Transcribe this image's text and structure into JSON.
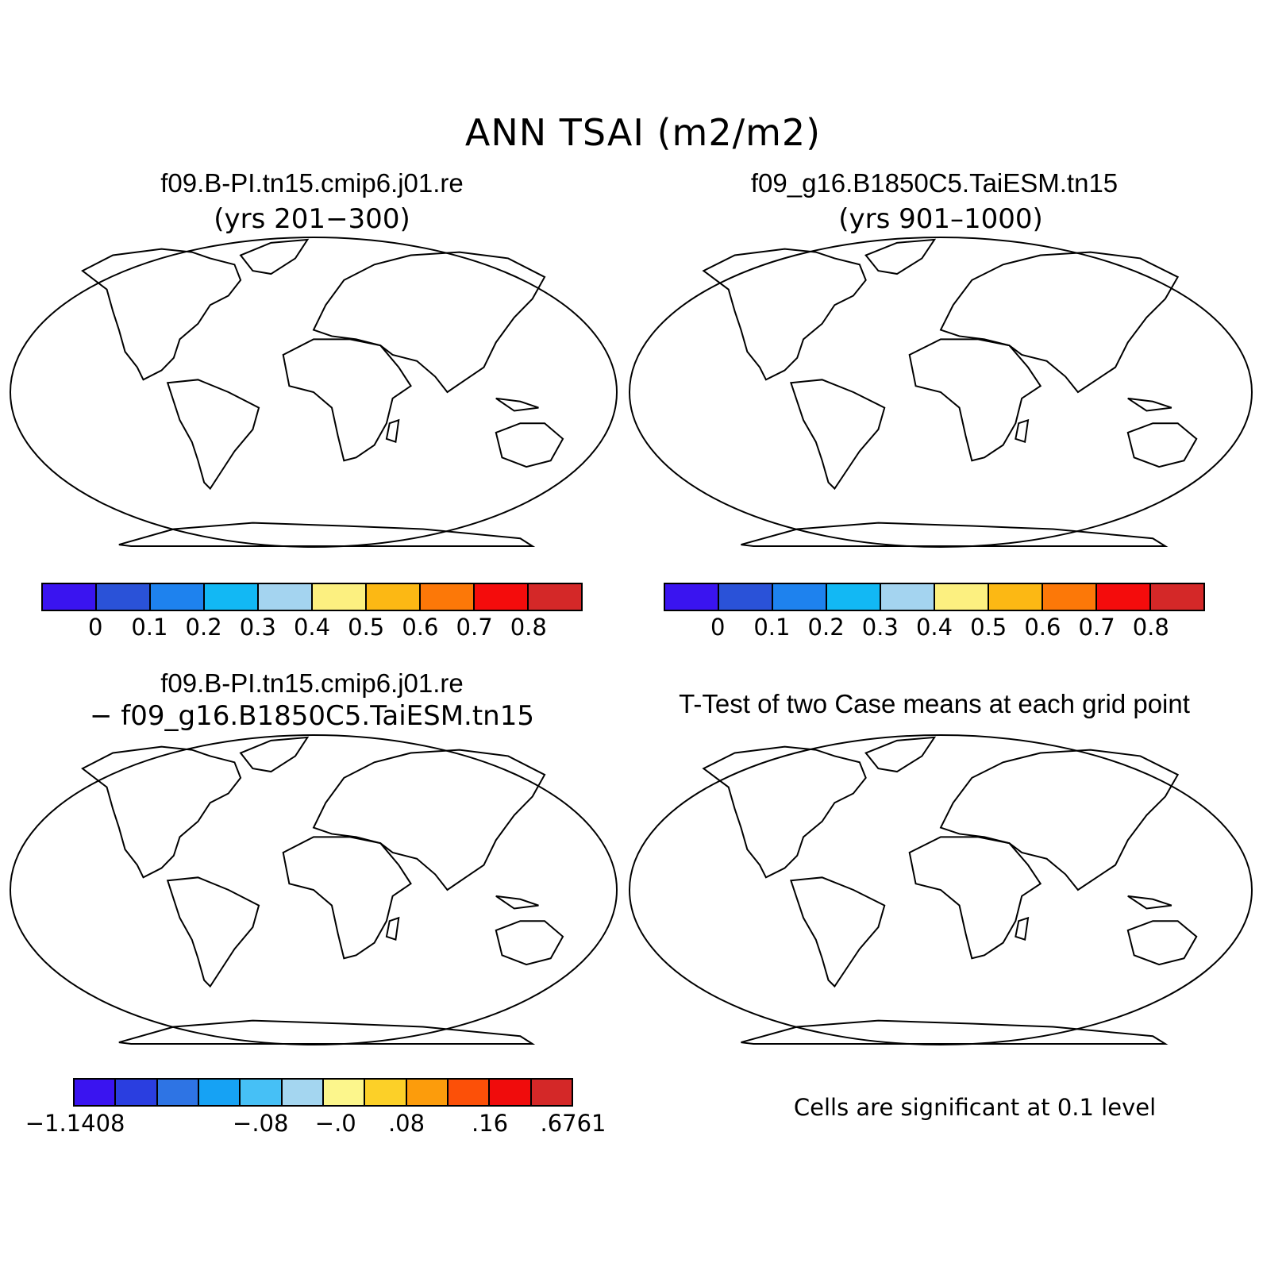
{
  "figure": {
    "title": "ANN TSAI (m2/m2)",
    "significance_note": "Cells are significant at 0.1 level"
  },
  "panels": {
    "case1": {
      "name": "f09.B-PI.tn15.cmip6.j01.re",
      "years": "(yrs 201−300)"
    },
    "case2": {
      "name": "f09_g16.B1850C5.TaiESM.tn15",
      "years": "(yrs 901–1000)"
    },
    "diff": {
      "line1": "f09.B-PI.tn15.cmip6.j01.re",
      "line2": "− f09_g16.B1850C5.TaiESM.tn15"
    },
    "ttest": {
      "title": "T-Test of two Case means at each grid point"
    }
  },
  "colorbars": {
    "abs": {
      "colors": [
        "#3a14f0",
        "#2a52d8",
        "#1e82ee",
        "#12b8f4",
        "#a4d4f0",
        "#fcf080",
        "#fcb814",
        "#fc7808",
        "#f40c0c",
        "#d42828"
      ],
      "labels": [
        "0",
        "0.1",
        "0.2",
        "0.3",
        "0.4",
        "0.5",
        "0.6",
        "0.7",
        "0.8"
      ]
    },
    "diff": {
      "colors": [
        "#3a14f0",
        "#2a3ee0",
        "#2e74e4",
        "#16a2f4",
        "#46c0f6",
        "#a4d6f0",
        "#fcf68c",
        "#fcd028",
        "#fc9c0c",
        "#fc5008",
        "#f00c0c",
        "#d42828"
      ],
      "labels": [
        "−1.1408",
        "−.08",
        "−.0",
        ".08",
        ".16",
        ".6761"
      ]
    }
  },
  "colors": {
    "significant": "#f00000",
    "outline": "#000000"
  }
}
